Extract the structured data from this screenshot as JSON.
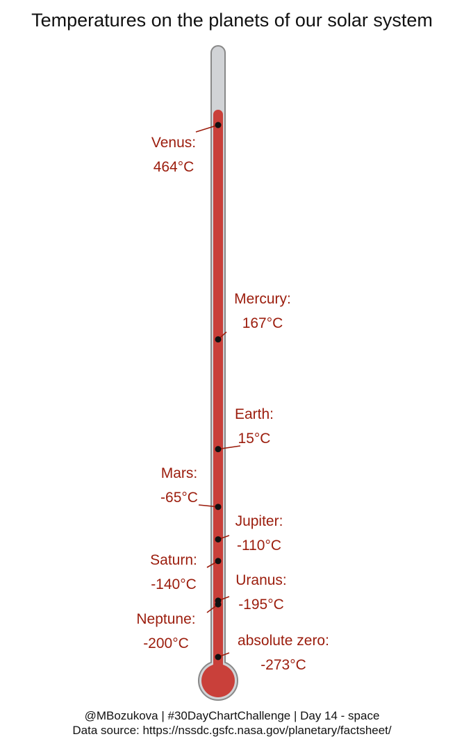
{
  "chart_data": {
    "type": "scatter",
    "title": "Temperatures on the planets of our solar system",
    "xlabel": "",
    "ylabel": "",
    "unit": "°C",
    "grid": false,
    "legend": "none",
    "points": [
      {
        "name": "Venus",
        "label": "Venus:",
        "value_label": "464°C",
        "value": 464,
        "side": "left"
      },
      {
        "name": "Mercury",
        "label": "Mercury:",
        "value_label": "167°C",
        "value": 167,
        "side": "right"
      },
      {
        "name": "Earth",
        "label": "Earth:",
        "value_label": "15°C",
        "value": 15,
        "side": "right"
      },
      {
        "name": "Mars",
        "label": "Mars:",
        "value_label": "-65°C",
        "value": -65,
        "side": "left"
      },
      {
        "name": "Jupiter",
        "label": "Jupiter:",
        "value_label": "-110°C",
        "value": -110,
        "side": "right"
      },
      {
        "name": "Saturn",
        "label": "Saturn:",
        "value_label": "-140°C",
        "value": -140,
        "side": "left"
      },
      {
        "name": "Uranus",
        "label": "Uranus:",
        "value_label": "-195°C",
        "value": -195,
        "side": "right"
      },
      {
        "name": "Neptune",
        "label": "Neptune:",
        "value_label": "-200°C",
        "value": -200,
        "side": "left"
      },
      {
        "name": "absolute zero",
        "label": "absolute zero:",
        "value_label": "-273°C",
        "value": -273,
        "side": "right"
      }
    ],
    "colors": {
      "mercury_fill": "#c9403a",
      "tube": "#d1d3d6",
      "tube_stroke": "#888888",
      "label": "#9b1c0c",
      "point": "#111111"
    }
  },
  "footer": {
    "credit": "@MBozukova | #30DayChartChallenge | Day 14 - space",
    "source": "Data source: https://nssdc.gsfc.nasa.gov/planetary/factsheet/"
  }
}
